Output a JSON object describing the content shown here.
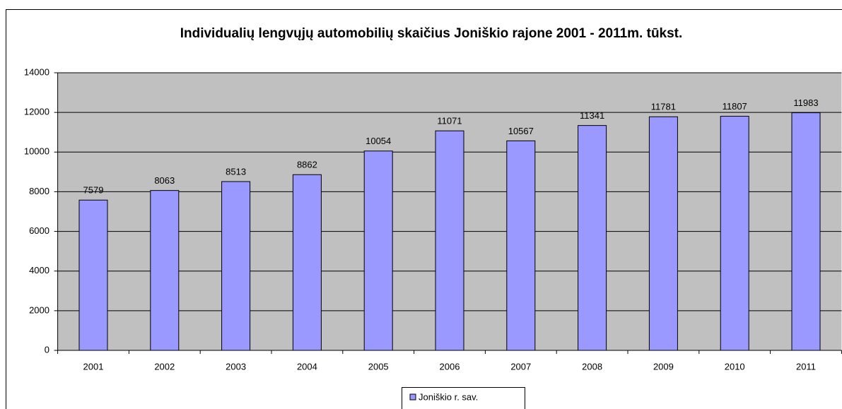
{
  "chart_data": {
    "type": "bar",
    "title": "Individualių lengvųjų automobilių skaičius Joniškio rajone 2001 - 2011m. tūkst.",
    "categories": [
      "2001",
      "2002",
      "2003",
      "2004",
      "2005",
      "2006",
      "2007",
      "2008",
      "2009",
      "2010",
      "2011"
    ],
    "series": [
      {
        "name": "Joniškio r. sav.",
        "color": "#9999ff",
        "values": [
          7579,
          8063,
          8513,
          8862,
          10054,
          11071,
          10567,
          11341,
          11781,
          11807,
          11983
        ]
      }
    ],
    "ylim": [
      0,
      14000
    ],
    "yticks": [
      0,
      2000,
      4000,
      6000,
      8000,
      10000,
      12000,
      14000
    ],
    "grid": true,
    "legend": "bottom",
    "plot_background": "#c0c0c0"
  }
}
